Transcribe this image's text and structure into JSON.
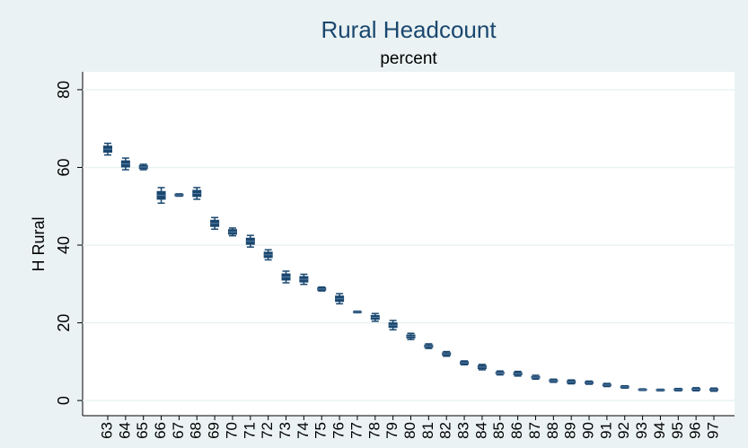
{
  "chart_data": {
    "type": "box",
    "title": "Rural Headcount",
    "subtitle": "percent",
    "y_label": "H Rural",
    "categories": [
      "63",
      "64",
      "65",
      "66",
      "67",
      "68",
      "69",
      "70",
      "71",
      "72",
      "73",
      "74",
      "75",
      "76",
      "77",
      "78",
      "79",
      "80",
      "81",
      "82",
      "83",
      "84",
      "85",
      "86",
      "87",
      "88",
      "89",
      "90",
      "91",
      "92",
      "93",
      "94",
      "95",
      "96",
      "97"
    ],
    "low": [
      63.2,
      59.4,
      59.4,
      50.8,
      52.6,
      51.8,
      44.1,
      42.4,
      39.5,
      36.2,
      30.3,
      29.9,
      28.2,
      24.9,
      22.6,
      20.4,
      18.2,
      15.7,
      13.4,
      11.4,
      9.2,
      7.9,
      6.6,
      6.3,
      5.5,
      4.7,
      4.3,
      4.2,
      3.6,
      3.2,
      2.6,
      2.5,
      2.5,
      2.5,
      2.4
    ],
    "q1": [
      63.9,
      60.1,
      59.7,
      51.8,
      52.7,
      52.5,
      44.8,
      42.8,
      40.2,
      36.8,
      31.0,
      30.5,
      28.4,
      25.5,
      22.7,
      20.9,
      18.8,
      16.1,
      13.7,
      11.7,
      9.4,
      8.2,
      6.9,
      6.6,
      5.8,
      4.9,
      4.5,
      4.4,
      3.8,
      3.3,
      2.7,
      2.6,
      2.6,
      2.7,
      2.6
    ],
    "median": [
      64.7,
      60.9,
      60.1,
      52.8,
      52.9,
      53.3,
      45.6,
      43.4,
      41.0,
      37.5,
      31.8,
      31.2,
      28.7,
      26.2,
      22.8,
      21.4,
      19.4,
      16.5,
      14.0,
      12.0,
      9.7,
      8.6,
      7.1,
      6.9,
      6.0,
      5.1,
      4.8,
      4.6,
      4.0,
      3.5,
      2.8,
      2.7,
      2.8,
      2.9,
      2.8
    ],
    "q3": [
      65.5,
      61.7,
      60.5,
      53.8,
      53.1,
      54.1,
      46.4,
      44.0,
      41.8,
      38.2,
      32.6,
      31.9,
      29.0,
      26.9,
      22.9,
      21.9,
      20.0,
      16.9,
      14.3,
      12.3,
      10.0,
      9.0,
      7.3,
      7.2,
      6.2,
      5.3,
      5.1,
      4.8,
      4.2,
      3.7,
      2.9,
      2.8,
      3.0,
      3.1,
      3.0
    ],
    "high": [
      66.2,
      62.4,
      60.8,
      54.8,
      53.2,
      54.8,
      47.1,
      44.4,
      42.5,
      38.8,
      33.3,
      32.5,
      29.2,
      27.5,
      23.0,
      22.4,
      20.6,
      17.3,
      14.6,
      12.6,
      10.2,
      9.3,
      7.6,
      7.5,
      6.5,
      5.5,
      5.3,
      5.0,
      4.4,
      3.8,
      3.0,
      2.9,
      3.1,
      3.3,
      3.2
    ],
    "color": "#1a476f",
    "ylim": [
      -3.9,
      84.6
    ],
    "yticks": [
      0,
      20,
      40,
      60,
      80
    ],
    "grid": true
  }
}
